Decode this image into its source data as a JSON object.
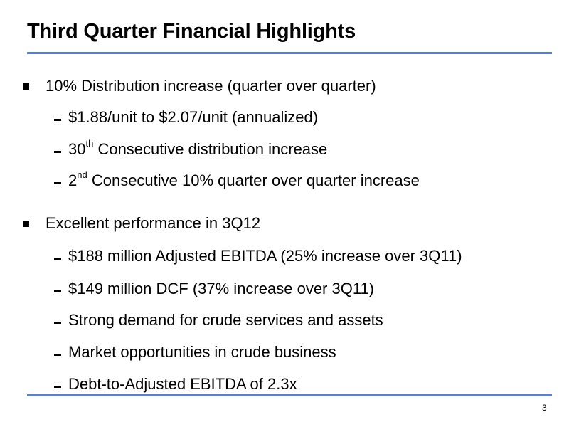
{
  "title": "Third Quarter Financial Highlights",
  "sections": [
    {
      "heading": "10% Distribution increase (quarter over quarter)",
      "items": [
        {
          "text": "$1.88/unit to $2.07/unit (annualized)"
        },
        {
          "pre": "30",
          "sup": "th",
          "post": " Consecutive distribution increase"
        },
        {
          "pre": "2",
          "sup": "nd",
          "post": " Consecutive 10% quarter over quarter increase"
        }
      ]
    },
    {
      "heading": "Excellent performance in 3Q12",
      "items": [
        {
          "text": "$188 million Adjusted EBITDA (25% increase over 3Q11)"
        },
        {
          "text": "$149 million DCF (37% increase over 3Q11)"
        },
        {
          "text": "Strong demand for crude services and assets"
        },
        {
          "text": "Market opportunities in crude business"
        },
        {
          "text": "Debt-to-Adjusted EBITDA of 2.3x"
        }
      ]
    }
  ],
  "page_number": "3",
  "colors": {
    "rule": "#5b7fd6",
    "text": "#000000",
    "background": "#ffffff"
  }
}
